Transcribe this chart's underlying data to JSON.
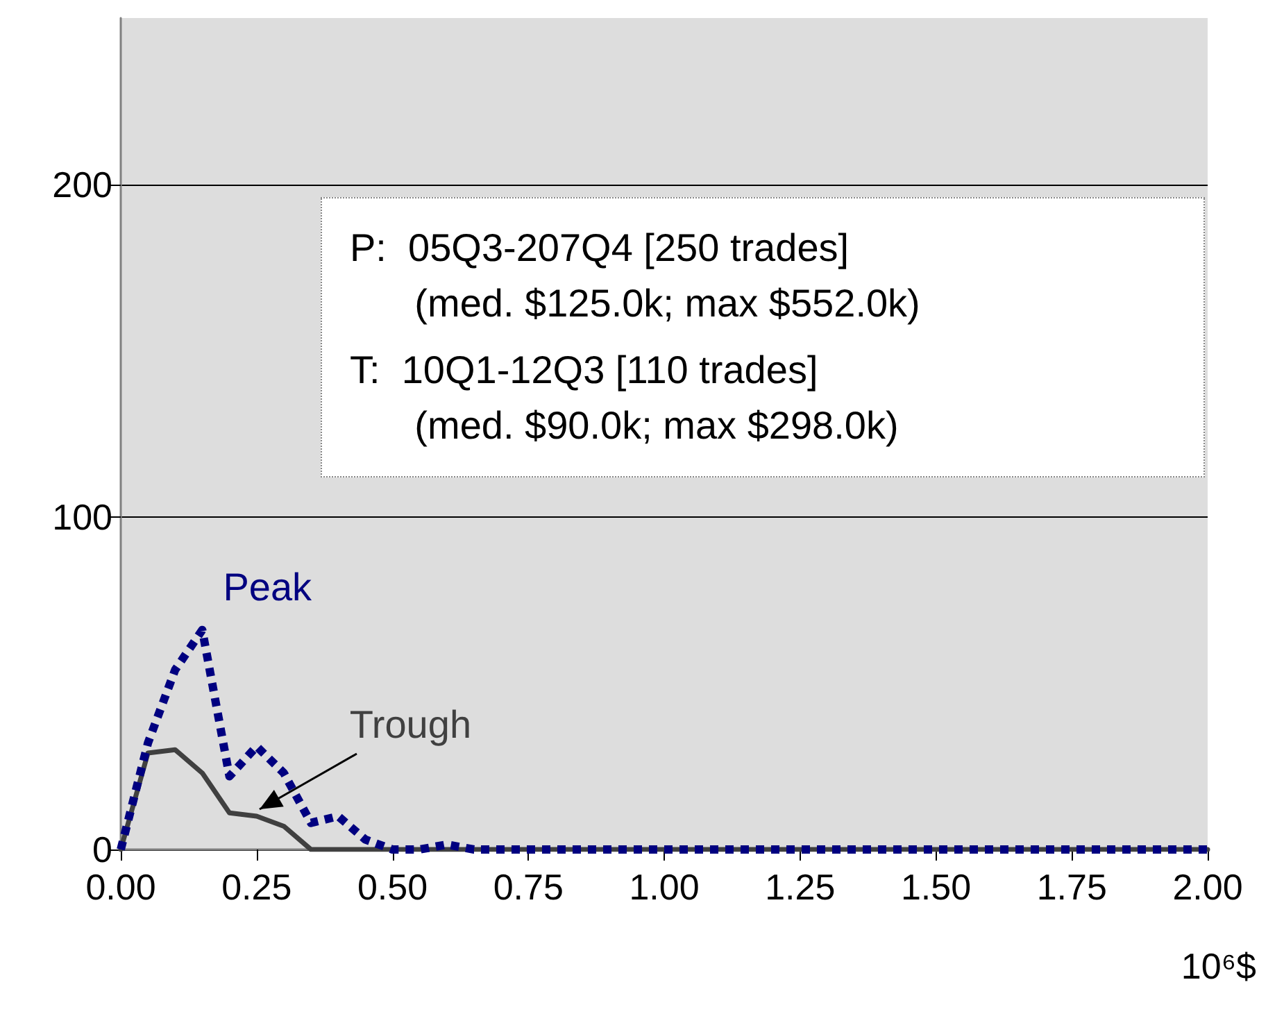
{
  "chart_data": {
    "type": "line",
    "xlabel": "10⁶$",
    "x": [
      0,
      0.05,
      0.1,
      0.15,
      0.2,
      0.25,
      0.3,
      0.35,
      0.4,
      0.45,
      0.5,
      0.55,
      0.6,
      0.65,
      0.7,
      0.75,
      0.8,
      0.85,
      0.9,
      0.95,
      1,
      1.05,
      1.1,
      1.15,
      1.2,
      1.25,
      1.3,
      1.35,
      1.4,
      1.45,
      1.5,
      1.55,
      1.6,
      1.65,
      1.7,
      1.75,
      1.8,
      1.85,
      1.9,
      1.95,
      2
    ],
    "series": [
      {
        "name": "Peak",
        "color": "#000080",
        "line_style": "dotted",
        "values": [
          0,
          32,
          54,
          66,
          22,
          31,
          23,
          8,
          10,
          3,
          0,
          0,
          1.5,
          0,
          0,
          0,
          0,
          0,
          0,
          0,
          0,
          0,
          0,
          0,
          0,
          0,
          0,
          0,
          0,
          0,
          0,
          0,
          0,
          0,
          0,
          0,
          0,
          0,
          0,
          0,
          0
        ]
      },
      {
        "name": "Trough",
        "color": "#404040",
        "line_style": "solid",
        "values": [
          0,
          29,
          30,
          23,
          11,
          10,
          7,
          0,
          0,
          0,
          0,
          0,
          0,
          0,
          0,
          0,
          0,
          0,
          0,
          0,
          0,
          0,
          0,
          0,
          0,
          0,
          0,
          0,
          0,
          0,
          0,
          0,
          0,
          0,
          0,
          0,
          0,
          0,
          0,
          0,
          0
        ]
      }
    ],
    "xlim": [
      0,
      2
    ],
    "xticks": [
      {
        "value": 0,
        "label": "0.00"
      },
      {
        "value": 0.25,
        "label": "0.25"
      },
      {
        "value": 0.5,
        "label": "0.50"
      },
      {
        "value": 0.75,
        "label": "0.75"
      },
      {
        "value": 1,
        "label": "1.00"
      },
      {
        "value": 1.25,
        "label": "1.25"
      },
      {
        "value": 1.5,
        "label": "1.50"
      },
      {
        "value": 1.75,
        "label": "1.75"
      },
      {
        "value": 2,
        "label": "2.00"
      }
    ],
    "ylim": [
      0,
      250
    ],
    "yticks": [
      0,
      100,
      200
    ],
    "grid": "y",
    "legend": false,
    "marker": "none",
    "annotations": [
      "P:  05Q3-207Q4 [250 trades]\n      (med. $125.0k; max $552.0k)",
      "T:  10Q1-12Q3 [110 trades]\n      (med. $90.0k; max $298.0k)"
    ]
  }
}
